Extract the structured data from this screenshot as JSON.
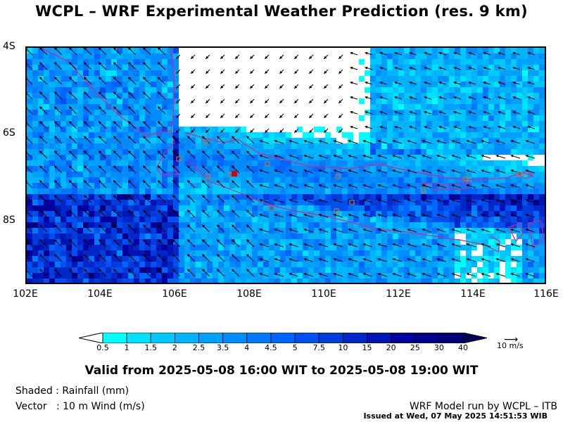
{
  "title": "WCPL – WRF Experimental Weather Prediction (res. 9 km)",
  "map": {
    "lat_labels": [
      "4S",
      "6S",
      "8S"
    ],
    "lon_labels": [
      "102E",
      "104E",
      "106E",
      "108E",
      "110E",
      "112E",
      "114E",
      "116E"
    ],
    "lat_range": [
      -9.4,
      -4
    ],
    "lon_range": [
      102,
      116
    ],
    "wind_direction": "westward / north-westward",
    "coastline_color": "#e0208a",
    "station_marker_color": "#b87a3a",
    "highlight_marker_color": "#dd0000"
  },
  "colorbar": {
    "labels": [
      "0.5",
      "1",
      "1.5",
      "2",
      "2.5",
      "3.5",
      "4",
      "4.5",
      "5",
      "7.5",
      "10",
      "15",
      "20",
      "25",
      "30",
      "40"
    ],
    "colors": [
      "#ffffff",
      "#00ffff",
      "#00e1ff",
      "#00c8ff",
      "#00b4ff",
      "#00a0ff",
      "#008cff",
      "#0078ff",
      "#0064ff",
      "#0050f0",
      "#003cdc",
      "#0028c8",
      "#0014b4",
      "#0000a0",
      "#00008c",
      "#000078",
      "#000050"
    ]
  },
  "reference_vector": {
    "arrow": "⟶",
    "label": "10 m/s"
  },
  "valid_text": "Valid from 2025-05-08 16:00 WIT to 2025-05-08 19:00 WIT",
  "legend": {
    "shaded": "Shaded : Rainfall (mm)",
    "vector": "Vector   : 10 m Wind (m/s)"
  },
  "footer": {
    "run": "WRF Model run by WCPL – ITB",
    "issued": "Issued at Wed, 07 May 2025 14:51:53 WIB"
  }
}
